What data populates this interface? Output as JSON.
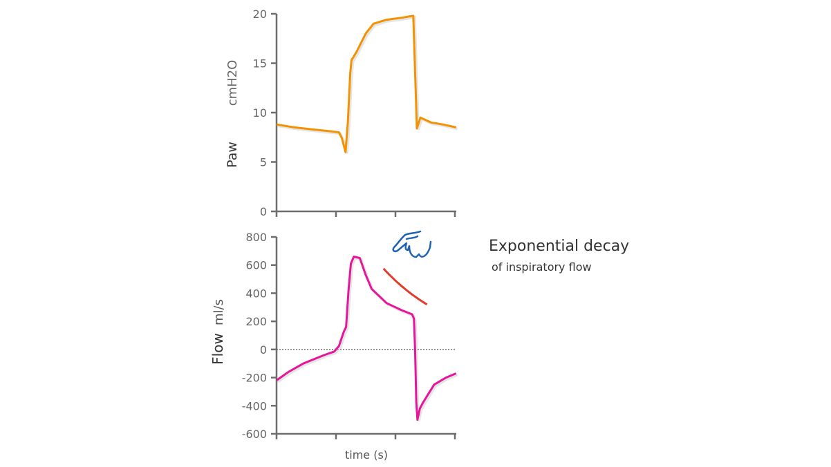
{
  "annotation": {
    "title": "Exponential decay",
    "subtitle": "of inspiratory flow",
    "hand_icon": "pointing-hand-icon",
    "hand_color": "#1f63b0",
    "curve_color": "#e23b2a"
  },
  "chart_data": [
    {
      "type": "line",
      "ylabel_main": "Paw",
      "ylabel_unit": "cmH2O",
      "xlabel": "",
      "ylim": [
        0,
        20
      ],
      "yticks": [
        0,
        5,
        10,
        15,
        20
      ],
      "xlim": [
        0,
        3
      ],
      "xticks": [
        0,
        1,
        2,
        3
      ],
      "grid": false,
      "color": "#f39200",
      "x": [
        0,
        0.3,
        0.6,
        0.93,
        1.05,
        1.1,
        1.16,
        1.2,
        1.24,
        1.26,
        1.35,
        1.5,
        1.63,
        1.85,
        2.1,
        2.3,
        2.36,
        2.42,
        2.6,
        2.8,
        3.02
      ],
      "y": [
        8.8,
        8.5,
        8.3,
        8.1,
        8.0,
        7.4,
        6.0,
        9.1,
        14.0,
        15.3,
        16.2,
        18.0,
        19.0,
        19.4,
        19.6,
        19.8,
        8.4,
        9.5,
        9.0,
        8.8,
        8.5
      ]
    },
    {
      "type": "line",
      "ylabel_main": "Flow",
      "ylabel_unit": "ml/s",
      "xlabel": "time (s)",
      "ylim": [
        -600,
        800
      ],
      "yticks": [
        -600,
        -400,
        -200,
        0,
        200,
        400,
        600,
        800
      ],
      "xlim": [
        0,
        3
      ],
      "xticks": [
        0,
        1,
        2,
        3
      ],
      "zero_line": "dotted",
      "grid": false,
      "color": "#e6169b",
      "x": [
        0,
        0.2,
        0.45,
        0.8,
        0.97,
        1.05,
        1.13,
        1.17,
        1.21,
        1.25,
        1.3,
        1.4,
        1.5,
        1.6,
        1.85,
        2.1,
        2.28,
        2.31,
        2.33,
        2.35,
        2.37,
        2.41,
        2.46,
        2.65,
        2.85,
        3.02
      ],
      "y": [
        -220,
        -160,
        -100,
        -40,
        -15,
        25,
        125,
        160,
        420,
        610,
        660,
        650,
        530,
        430,
        330,
        280,
        250,
        220,
        0,
        -370,
        -500,
        -420,
        -380,
        -250,
        -200,
        -170
      ],
      "annotation_curve": {
        "x": [
          1.8,
          2.53
        ],
        "y": [
          575,
          320
        ]
      }
    }
  ]
}
